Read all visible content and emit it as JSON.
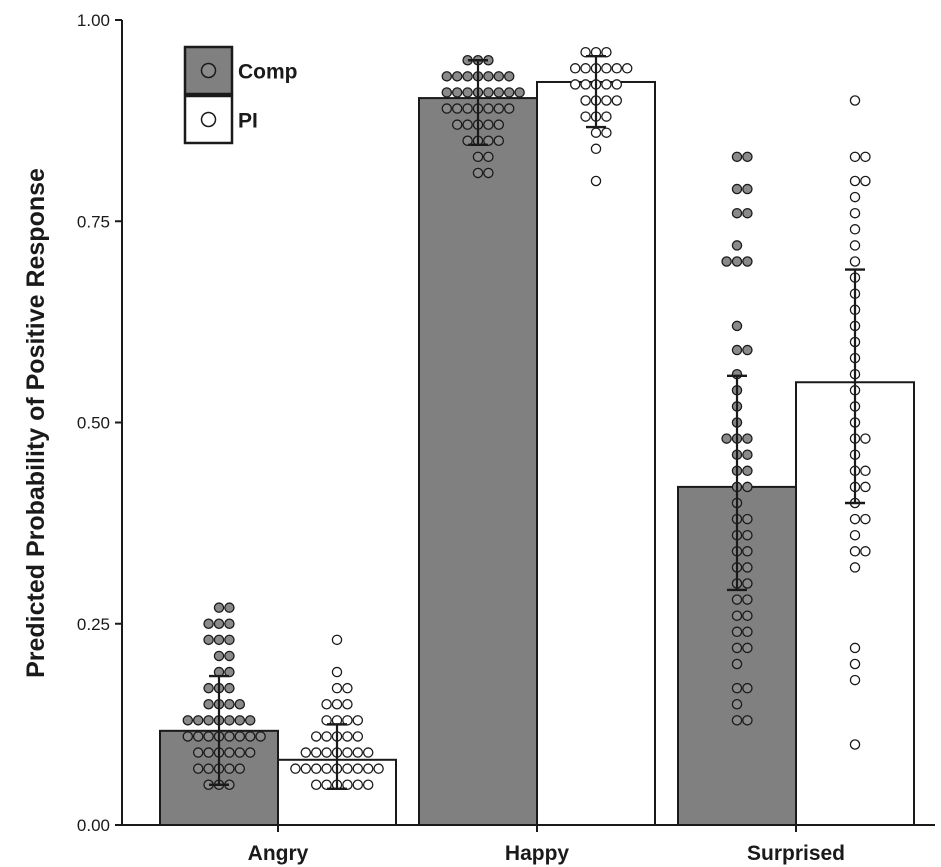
{
  "chart_data": {
    "type": "bar",
    "title": "",
    "xlabel": "",
    "ylabel": "Predicted Probability of Positive Response",
    "ylim": [
      0,
      1
    ],
    "yticks": [
      0,
      0.25,
      0.5,
      0.75,
      1
    ],
    "ytick_labels": [
      "0.00",
      "0.25",
      "0.50",
      "0.75",
      "1.00"
    ],
    "categories": [
      "Angry",
      "Happy",
      "Surprised"
    ],
    "legend_position": "top-left",
    "colors": {
      "Comp": "#808080",
      "PI": "#ffffff",
      "outline": "#1a1a1a"
    },
    "series": [
      {
        "name": "Comp",
        "values": [
          0.117,
          0.903,
          0.42
        ],
        "error_low": [
          0.05,
          0.845,
          0.292
        ],
        "error_high": [
          0.185,
          0.95,
          0.558
        ],
        "points": [
          [
            0.27,
            0.26,
            0.25,
            0.24,
            0.24,
            0.23,
            0.22,
            0.22,
            0.21,
            0.2,
            0.19,
            0.18,
            0.17,
            0.16,
            0.16,
            0.15,
            0.15,
            0.14,
            0.14,
            0.13,
            0.13,
            0.13,
            0.12,
            0.12,
            0.12,
            0.12,
            0.11,
            0.11,
            0.11,
            0.11,
            0.1,
            0.1,
            0.1,
            0.1,
            0.09,
            0.09,
            0.09,
            0.08,
            0.08,
            0.08,
            0.07,
            0.07,
            0.07,
            0.06,
            0.06,
            0.05,
            0.05,
            0.05
          ],
          [
            0.95,
            0.94,
            0.94,
            0.93,
            0.93,
            0.93,
            0.92,
            0.92,
            0.92,
            0.92,
            0.91,
            0.91,
            0.91,
            0.91,
            0.9,
            0.9,
            0.9,
            0.9,
            0.89,
            0.89,
            0.89,
            0.89,
            0.88,
            0.88,
            0.88,
            0.87,
            0.87,
            0.87,
            0.86,
            0.86,
            0.85,
            0.85,
            0.84,
            0.84,
            0.83,
            0.82,
            0.81,
            0.8
          ],
          [
            0.83,
            0.82,
            0.79,
            0.78,
            0.76,
            0.75,
            0.72,
            0.7,
            0.7,
            0.69,
            0.62,
            0.59,
            0.58,
            0.56,
            0.54,
            0.52,
            0.5,
            0.48,
            0.48,
            0.47,
            0.46,
            0.45,
            0.44,
            0.43,
            0.42,
            0.41,
            0.4,
            0.38,
            0.37,
            0.36,
            0.35,
            0.34,
            0.33,
            0.32,
            0.31,
            0.3,
            0.29,
            0.28,
            0.27,
            0.26,
            0.25,
            0.24,
            0.23,
            0.22,
            0.21,
            0.2,
            0.17,
            0.16,
            0.15,
            0.13,
            0.12
          ]
        ]
      },
      {
        "name": "PI",
        "values": [
          0.081,
          0.923,
          0.55
        ],
        "error_low": [
          0.045,
          0.867,
          0.4
        ],
        "error_high": [
          0.125,
          0.955,
          0.69
        ],
        "points": [
          [
            0.23,
            0.19,
            0.17,
            0.16,
            0.15,
            0.14,
            0.14,
            0.13,
            0.13,
            0.12,
            0.12,
            0.11,
            0.11,
            0.1,
            0.1,
            0.1,
            0.09,
            0.09,
            0.09,
            0.08,
            0.08,
            0.08,
            0.08,
            0.07,
            0.07,
            0.07,
            0.07,
            0.06,
            0.06,
            0.06,
            0.06,
            0.06,
            0.05,
            0.05,
            0.05,
            0.05,
            0.04,
            0.04
          ],
          [
            0.96,
            0.95,
            0.95,
            0.94,
            0.94,
            0.94,
            0.93,
            0.93,
            0.93,
            0.92,
            0.92,
            0.92,
            0.91,
            0.91,
            0.9,
            0.9,
            0.89,
            0.89,
            0.88,
            0.88,
            0.87,
            0.86,
            0.85,
            0.84,
            0.8
          ],
          [
            0.9,
            0.83,
            0.82,
            0.8,
            0.79,
            0.78,
            0.76,
            0.74,
            0.72,
            0.7,
            0.68,
            0.66,
            0.64,
            0.62,
            0.6,
            0.58,
            0.56,
            0.54,
            0.52,
            0.5,
            0.48,
            0.47,
            0.46,
            0.44,
            0.43,
            0.42,
            0.41,
            0.4,
            0.38,
            0.37,
            0.36,
            0.34,
            0.33,
            0.32,
            0.22,
            0.2,
            0.18,
            0.1
          ]
        ]
      }
    ]
  }
}
